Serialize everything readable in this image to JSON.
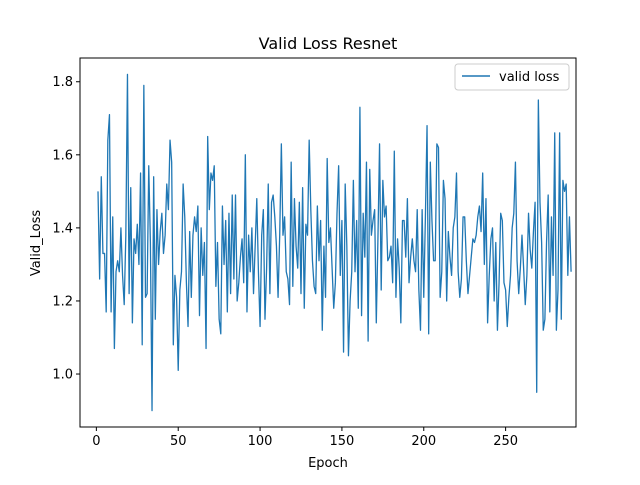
{
  "chart_data": {
    "type": "line",
    "title": "Valid Loss Resnet",
    "xlabel": "Epoch",
    "ylabel": "Valid_Loss",
    "xlim": [
      -10,
      293
    ],
    "ylim": [
      0.855,
      1.865
    ],
    "xticks": [
      0,
      50,
      100,
      150,
      200,
      250
    ],
    "yticks": [
      1.0,
      1.2,
      1.4,
      1.6,
      1.8
    ],
    "ytick_labels": [
      "1.0",
      "1.2",
      "1.4",
      "1.6",
      "1.8"
    ],
    "grid": false,
    "legend_position": "top-right",
    "series": [
      {
        "name": "valid loss",
        "color": "#1f77b4",
        "x_start": 1,
        "values": [
          1.5,
          1.26,
          1.54,
          1.33,
          1.33,
          1.17,
          1.64,
          1.71,
          1.17,
          1.43,
          1.07,
          1.28,
          1.31,
          1.28,
          1.4,
          1.27,
          1.19,
          1.38,
          1.82,
          1.22,
          1.51,
          1.14,
          1.37,
          1.33,
          1.41,
          1.3,
          1.55,
          1.08,
          1.79,
          1.21,
          1.22,
          1.57,
          1.36,
          0.9,
          1.54,
          1.15,
          1.45,
          1.3,
          1.39,
          1.44,
          1.33,
          1.38,
          1.52,
          1.45,
          1.64,
          1.58,
          1.08,
          1.27,
          1.21,
          1.01,
          1.23,
          1.28,
          1.52,
          1.43,
          1.25,
          1.13,
          1.39,
          1.21,
          1.38,
          1.43,
          1.39,
          1.46,
          1.16,
          1.4,
          1.27,
          1.36,
          1.07,
          1.65,
          1.45,
          1.55,
          1.53,
          1.57,
          1.24,
          1.36,
          1.15,
          1.11,
          1.46,
          1.3,
          1.42,
          1.17,
          1.44,
          1.22,
          1.49,
          1.26,
          1.49,
          1.2,
          1.25,
          1.32,
          1.37,
          1.25,
          1.6,
          1.17,
          1.38,
          1.28,
          1.4,
          1.22,
          1.35,
          1.48,
          1.28,
          1.13,
          1.38,
          1.45,
          1.15,
          1.29,
          1.52,
          1.22,
          1.47,
          1.49,
          1.43,
          1.35,
          1.21,
          1.38,
          1.63,
          1.38,
          1.43,
          1.28,
          1.26,
          1.19,
          1.58,
          1.24,
          1.48,
          1.35,
          1.29,
          1.47,
          1.22,
          1.51,
          1.18,
          1.41,
          1.38,
          1.64,
          1.45,
          1.31,
          1.24,
          1.22,
          1.46,
          1.31,
          1.42,
          1.12,
          1.35,
          1.21,
          1.59,
          1.36,
          1.4,
          1.29,
          1.18,
          1.25,
          1.44,
          1.57,
          1.27,
          1.42,
          1.06,
          1.52,
          1.35,
          1.05,
          1.2,
          1.28,
          1.53,
          1.28,
          1.42,
          1.18,
          1.73,
          1.16,
          1.44,
          1.32,
          1.58,
          1.09,
          1.56,
          1.38,
          1.42,
          1.45,
          1.14,
          1.37,
          1.63,
          1.23,
          1.53,
          1.43,
          1.46,
          1.31,
          1.32,
          1.35,
          1.25,
          1.61,
          1.21,
          1.37,
          1.29,
          1.14,
          1.42,
          1.42,
          1.32,
          1.48,
          1.25,
          1.32,
          1.37,
          1.31,
          1.28,
          1.45,
          1.23,
          1.12,
          1.45,
          1.21,
          1.43,
          1.68,
          1.11,
          1.58,
          1.42,
          1.31,
          1.31,
          1.63,
          1.62,
          1.21,
          1.28,
          1.53,
          1.48,
          1.2,
          1.39,
          1.32,
          1.27,
          1.4,
          1.43,
          1.55,
          1.28,
          1.21,
          1.26,
          1.43,
          1.43,
          1.31,
          1.22,
          1.27,
          1.32,
          1.37,
          1.36,
          1.38,
          1.43,
          1.46,
          1.39,
          1.55,
          1.3,
          1.48,
          1.14,
          1.27,
          1.37,
          1.4,
          1.2,
          1.36,
          1.12,
          1.25,
          1.44,
          1.42,
          1.25,
          1.23,
          1.13,
          1.21,
          1.27,
          1.4,
          1.44,
          1.58,
          1.31,
          1.22,
          1.29,
          1.38,
          1.29,
          1.19,
          1.27,
          1.44,
          1.34,
          1.29,
          1.39,
          1.47,
          0.95,
          1.75,
          1.47,
          1.36,
          1.12,
          1.15,
          1.36,
          1.49,
          1.17,
          1.43,
          1.27,
          1.66,
          1.12,
          1.23,
          1.66,
          1.15,
          1.53,
          1.5,
          1.52,
          1.27,
          1.43,
          1.28
        ]
      }
    ]
  }
}
